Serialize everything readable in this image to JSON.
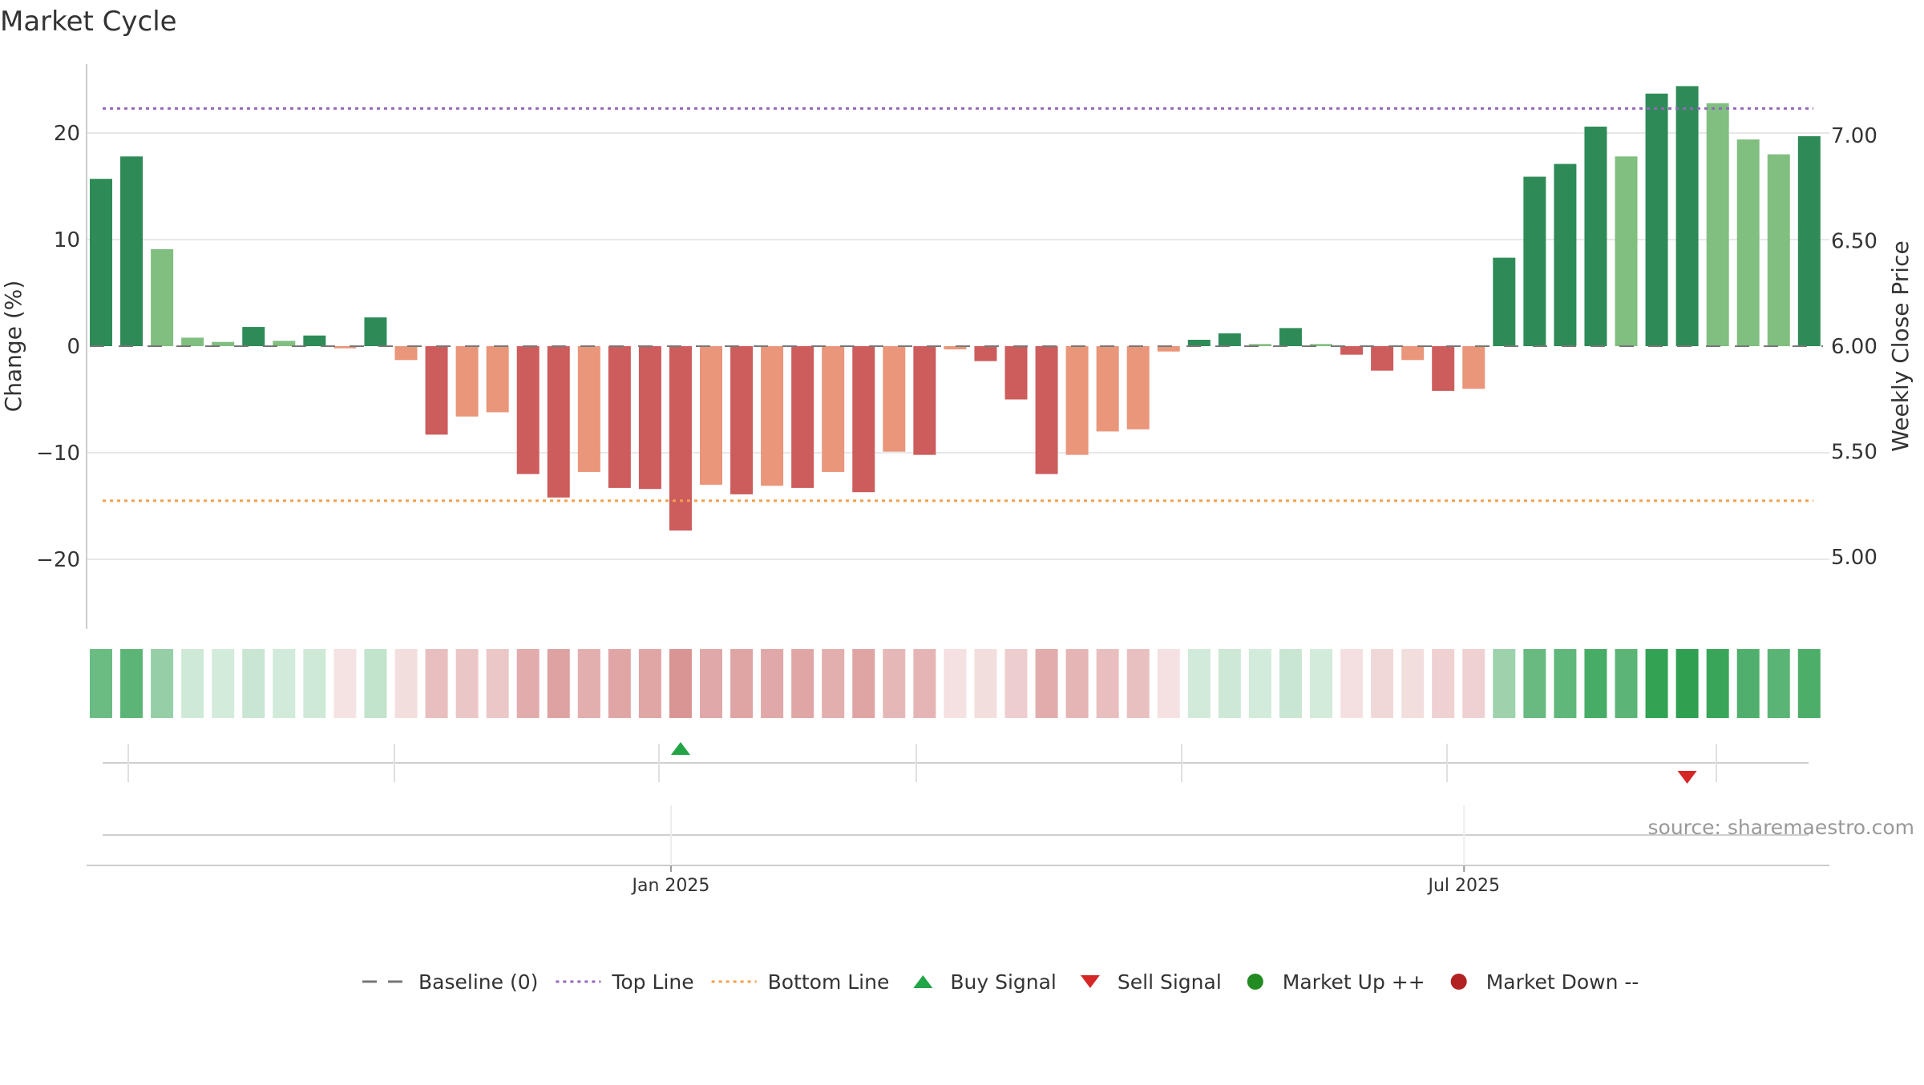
{
  "chart_data": {
    "type": "bar",
    "title": "Market Cycle",
    "ylabel": "Change (%)",
    "y2label": "Weekly Close Price",
    "ylim": [
      -26,
      26
    ],
    "y2lim": [
      4.5,
      7.2
    ],
    "yticks": [
      -20,
      -10,
      0,
      10,
      20
    ],
    "ytick_labels": [
      "−20",
      "−10",
      "0",
      "10",
      "20"
    ],
    "y2ticks": [
      5.0,
      5.5,
      6.0,
      6.5,
      7.0
    ],
    "y2tick_labels": [
      "5.00",
      "5.50",
      "6.00",
      "6.50",
      "7.00"
    ],
    "baseline": 0,
    "top_line": 22.3,
    "bottom_line": -14.5,
    "x_tick_labels": [
      "Jan 2025",
      "Jul 2025"
    ],
    "x_tick_positions": [
      19,
      45
    ],
    "grid": true,
    "legend_placement": "bottom-center",
    "values": [
      15.7,
      17.8,
      9.1,
      0.8,
      0.4,
      1.8,
      0.5,
      1.0,
      -0.2,
      2.7,
      -1.3,
      -8.3,
      -6.6,
      -6.2,
      -12.0,
      -14.2,
      -11.8,
      -13.3,
      -13.4,
      -17.3,
      -13.0,
      -13.9,
      -13.1,
      -13.3,
      -11.8,
      -13.7,
      -9.9,
      -10.2,
      -0.3,
      -1.4,
      -5.0,
      -12.0,
      -10.2,
      -8.0,
      -7.8,
      -0.5,
      0.6,
      1.2,
      0.2,
      1.7,
      0.2,
      -0.8,
      -2.3,
      -1.3,
      -4.2,
      -4.0,
      8.3,
      15.9,
      17.1,
      20.6,
      17.8,
      23.7,
      24.4,
      22.8,
      19.4,
      18.0,
      19.7
    ],
    "signals": [
      {
        "type": "buy",
        "index": 19
      },
      {
        "type": "sell",
        "index": 52
      }
    ],
    "source": "source: sharemaestro.com",
    "legend": [
      {
        "label": "Baseline (0)",
        "kind": "dash-line",
        "color": "#777777"
      },
      {
        "label": "Top Line",
        "kind": "dot-line",
        "color": "#9467bd"
      },
      {
        "label": "Bottom Line",
        "kind": "dot-line",
        "color": "#f0a050"
      },
      {
        "label": "Buy Signal",
        "kind": "triangle-up",
        "color": "#22a447"
      },
      {
        "label": "Sell Signal",
        "kind": "triangle-down",
        "color": "#d62728"
      },
      {
        "label": "Market Up ++",
        "kind": "circle",
        "color": "#228b22"
      },
      {
        "label": "Market Down --",
        "kind": "circle",
        "color": "#b22222"
      }
    ],
    "colors": {
      "strong_up": "#2e8b57",
      "weak_up": "#80bf7f",
      "strong_down": "#cd5c5c",
      "weak_down": "#e9967a",
      "top_line": "#9467bd",
      "bottom_line": "#f0a050"
    }
  }
}
